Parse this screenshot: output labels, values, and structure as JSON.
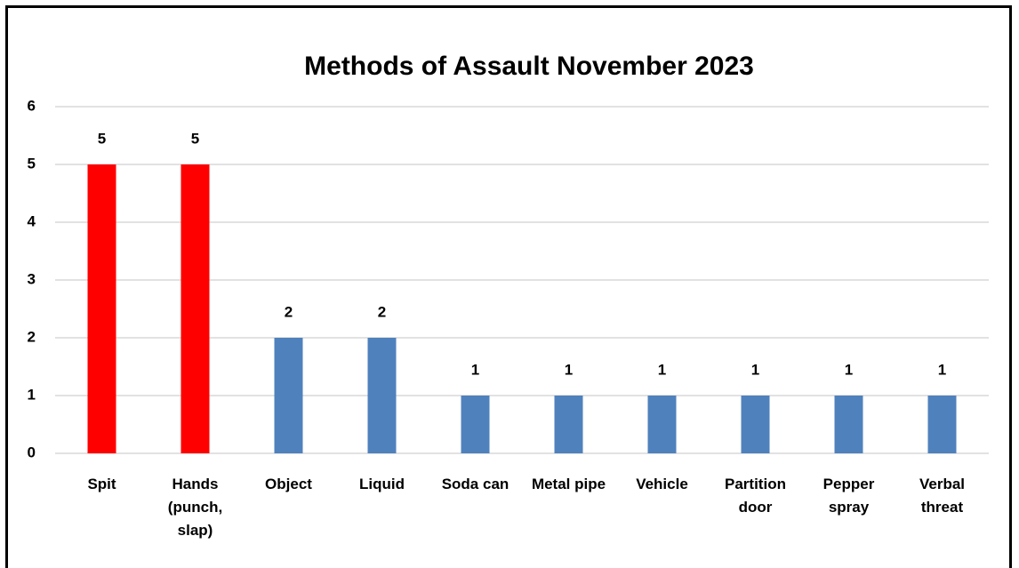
{
  "chart_data": {
    "type": "bar",
    "title": "Methods of Assault November 2023",
    "categories": [
      "Spit",
      "Hands (punch, slap)",
      "Object",
      "Liquid",
      "Soda can",
      "Metal pipe",
      "Vehicle",
      "Partition door",
      "Pepper spray",
      "Verbal threat"
    ],
    "values": [
      5,
      5,
      2,
      2,
      1,
      1,
      1,
      1,
      1,
      1
    ],
    "colors": [
      "#ff0000",
      "#ff0000",
      "#4f81bd",
      "#4f81bd",
      "#4f81bd",
      "#4f81bd",
      "#4f81bd",
      "#4f81bd",
      "#4f81bd",
      "#4f81bd"
    ],
    "ylim": [
      0,
      6
    ],
    "yticks": [
      0,
      1,
      2,
      3,
      4,
      5,
      6
    ],
    "grid": true,
    "data_labels": true
  }
}
